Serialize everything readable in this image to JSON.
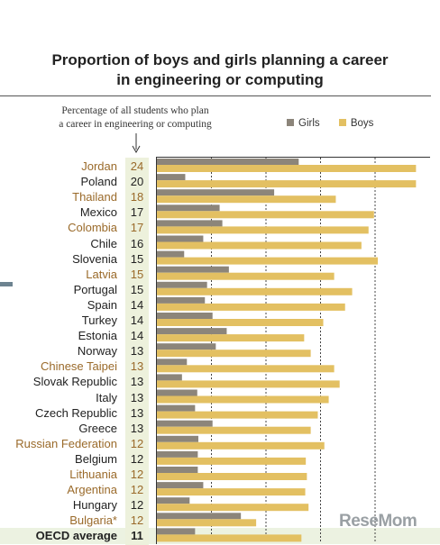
{
  "title_lines": [
    "Proportion of boys and girls planning a career",
    "in engineering or computing"
  ],
  "subtitle_lines": [
    "Percentage of all students who plan",
    "a career in engineering or computing"
  ],
  "legend": [
    {
      "label": "Girls",
      "color": "#8c857a"
    },
    {
      "label": "Boys",
      "color": "#e3c062"
    }
  ],
  "watermark": "ReseMom",
  "colors": {
    "girls": "#8c857a",
    "boys": "#e3c062",
    "highlight_text": "#9a6a2a",
    "pct_column_bg": "#edf1dc"
  },
  "chart_data": {
    "type": "bar",
    "orientation": "horizontal",
    "title": "Proportion of boys and girls planning a career in engineering or computing",
    "xlim": [
      0,
      50
    ],
    "grid": true,
    "legend_position": "top-right",
    "categories": [
      "Jordan",
      "Poland",
      "Thailand",
      "Mexico",
      "Colombia",
      "Chile",
      "Slovenia",
      "Latvia",
      "Portugal",
      "Spain",
      "Turkey",
      "Estonia",
      "Norway",
      "Chinese Taipei",
      "Slovak Republic",
      "Italy",
      "Czech Republic",
      "Greece",
      "Russian Federation",
      "Belgium",
      "Lithuania",
      "Argentina",
      "Hungary",
      "Bulgaria*",
      "OECD average"
    ],
    "highlighted": [
      true,
      false,
      true,
      false,
      true,
      false,
      false,
      true,
      false,
      false,
      false,
      false,
      false,
      true,
      false,
      false,
      false,
      false,
      true,
      false,
      true,
      true,
      false,
      true,
      false
    ],
    "total_percent": [
      24,
      20,
      18,
      17,
      17,
      16,
      15,
      15,
      15,
      14,
      14,
      14,
      13,
      13,
      13,
      13,
      13,
      13,
      12,
      12,
      12,
      12,
      12,
      12,
      11
    ],
    "series": [
      {
        "name": "Girls",
        "values": [
          26,
          5.2,
          21.5,
          11.5,
          12,
          8.5,
          5,
          13.2,
          9.2,
          8.8,
          10.2,
          12.8,
          10.8,
          5.5,
          4.6,
          7.4,
          7,
          10.2,
          7.6,
          7.5,
          7.5,
          8.5,
          6,
          15.4,
          7
        ]
      },
      {
        "name": "Boys",
        "values": [
          47.5,
          47.5,
          32.8,
          39.8,
          38.8,
          37.5,
          40.5,
          32.5,
          35.8,
          34.5,
          30.5,
          27,
          28.2,
          32.5,
          33.5,
          31.5,
          29.5,
          28.2,
          30.7,
          27.3,
          27.5,
          27.2,
          27.8,
          18.2,
          26.5
        ]
      }
    ]
  }
}
